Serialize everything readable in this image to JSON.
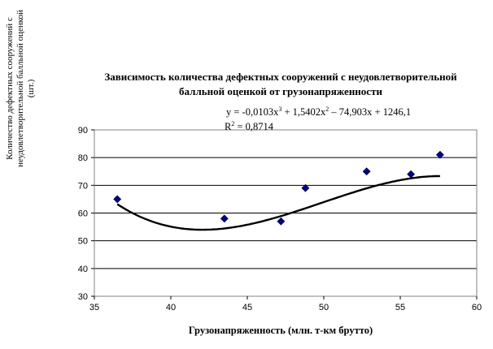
{
  "chart_data": {
    "type": "scatter",
    "title": "Зависимость количества дефектных сооружений с неудовлетворительной балльной оценкой от грузонапряженности",
    "xlabel": "Грузонапряженность (млн. т-км брутто)",
    "ylabel": "Количество дефектных сооружений с неудовлетворительной балльной оценкой (шт.)",
    "xlim": [
      35,
      60
    ],
    "ylim": [
      30,
      90
    ],
    "x_ticks": [
      "35",
      "40",
      "45",
      "50",
      "55",
      "60"
    ],
    "y_ticks": [
      "30",
      "40",
      "50",
      "60",
      "70",
      "80",
      "90"
    ],
    "grid": "horizontal",
    "points": [
      {
        "x": 36.5,
        "y": 65
      },
      {
        "x": 43.5,
        "y": 58
      },
      {
        "x": 47.2,
        "y": 57
      },
      {
        "x": 48.8,
        "y": 69
      },
      {
        "x": 52.8,
        "y": 75
      },
      {
        "x": 55.7,
        "y": 74
      },
      {
        "x": 57.6,
        "y": 81
      }
    ],
    "trendline": {
      "type": "polynomial",
      "coefficients": [
        -0.0103,
        1.5402,
        -74.903,
        1246.1
      ],
      "x_range": [
        36.5,
        57.6
      ],
      "equation_label": {
        "prefix": "y = -0,0103x",
        "sup1": "3",
        "mid1": " + 1,5402x",
        "sup2": "2",
        "suffix": " – 74,903x + 1246,1"
      },
      "r2_label": {
        "prefix": "R",
        "sup": "2",
        "suffix": " = 0,8714"
      }
    },
    "colors": {
      "marker": "#000080",
      "trendline": "#000000",
      "grid": "#000000"
    }
  }
}
